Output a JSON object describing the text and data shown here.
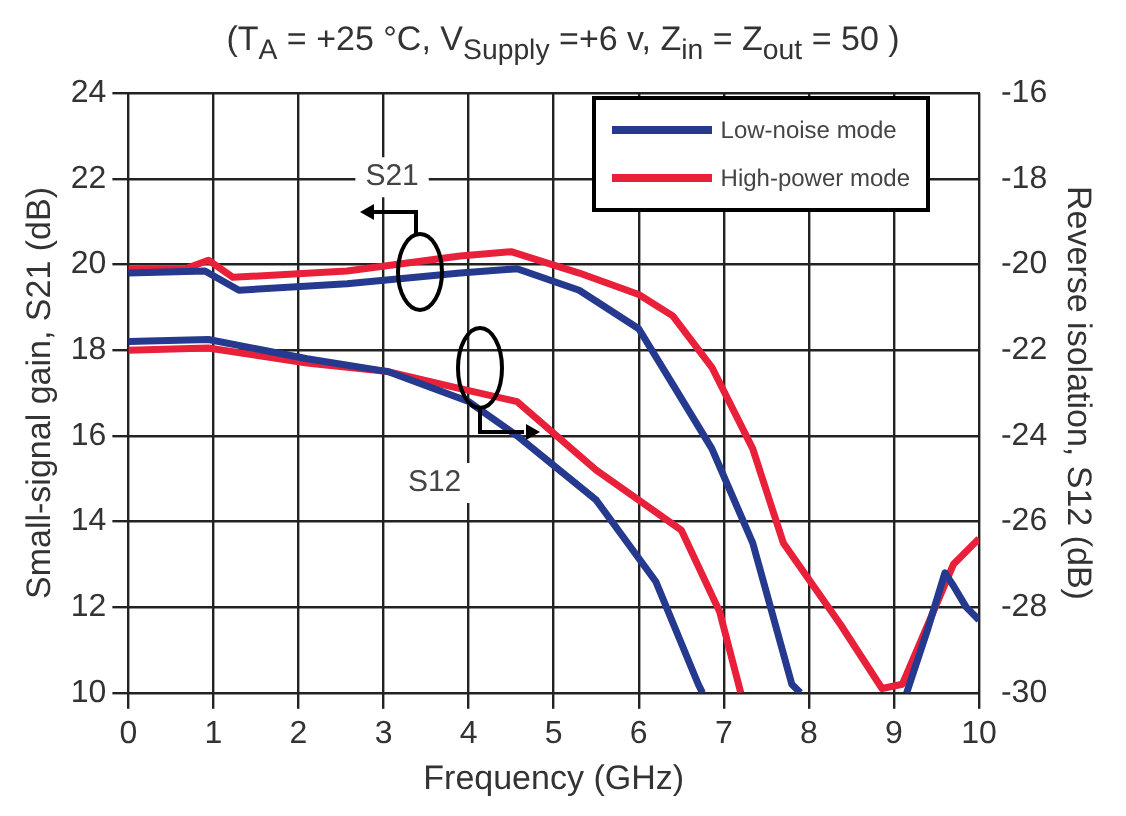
{
  "chart_data": {
    "type": "line",
    "title": "(T$_{A}$ = +25 °C, V$_{Supply}$ =+6 v, Z$_{in}$ = Z$_{out}$ = 50 )",
    "xlabel": "Frequency (GHz)",
    "ylabel": "Small-signal gain, S21 (dB)",
    "y2label": "Reverse isolation, S12 (dB)",
    "xlim": [
      0,
      10
    ],
    "xticks": [
      0,
      1,
      2,
      3,
      4,
      5,
      6,
      7,
      8,
      9,
      10
    ],
    "ylim": [
      10,
      24
    ],
    "yticks": [
      10,
      12,
      14,
      16,
      18,
      20,
      22,
      24
    ],
    "y2lim": [
      -30,
      -16
    ],
    "y2ticks": [
      -30,
      -28,
      -26,
      -24,
      -22,
      -20,
      -18,
      -16
    ],
    "grid": true,
    "legend": "top right",
    "marker": "none",
    "line_style": "solid",
    "annotations": [
      "S21",
      "S12"
    ],
    "series": [
      {
        "name": "Low-noise mode",
        "color": "#253a8e",
        "x": [
          0,
          0.9,
          1.3,
          2.57,
          3.9,
          4.57,
          5.3,
          6,
          6.4,
          6.86,
          7.34,
          7.8,
          7.9,
          8.5,
          9.15,
          9.4,
          9.6,
          9.7,
          9.85,
          10
        ],
        "values": [
          19.8,
          19.85,
          19.4,
          19.55,
          19.8,
          19.9,
          19.4,
          18.5,
          17.2,
          15.7,
          13.5,
          10.2,
          10,
          null,
          10,
          11.5,
          12.8,
          12.5,
          12,
          11.7
        ]
      },
      {
        "name": "High-power mode",
        "color": "#e8203a",
        "x": [
          0,
          0.67,
          0.94,
          1.23,
          2.57,
          3.9,
          4.5,
          5.3,
          6,
          6.4,
          6.86,
          7.34,
          7.7,
          8.37,
          8.86,
          9.1,
          9.4,
          9.7,
          10
        ],
        "values": [
          19.9,
          19.9,
          20.1,
          19.7,
          19.85,
          20.2,
          20.3,
          19.8,
          19.3,
          18.8,
          17.6,
          15.7,
          13.5,
          11.6,
          10.1,
          10.2,
          11.6,
          13,
          13.6
        ]
      },
      {
        "color": "#253a8e",
        "axis": "y2",
        "x": [
          0,
          0.94,
          2.1,
          3.05,
          4,
          4.57,
          5.5,
          6.2,
          6.7,
          6.75
        ],
        "values": [
          -21.8,
          -21.75,
          -22.2,
          -22.5,
          -23.2,
          -24,
          -25.5,
          -27.4,
          -29.8,
          -30
        ]
      },
      {
        "color": "#e8203a",
        "axis": "y2",
        "x": [
          0,
          0.94,
          2.1,
          3.05,
          3.9,
          4.57,
          5.5,
          6.5,
          6.95,
          7.2
        ],
        "values": [
          -22,
          -21.95,
          -22.3,
          -22.5,
          -22.9,
          -23.2,
          -24.8,
          -26.2,
          -28.1,
          -30
        ]
      }
    ]
  }
}
